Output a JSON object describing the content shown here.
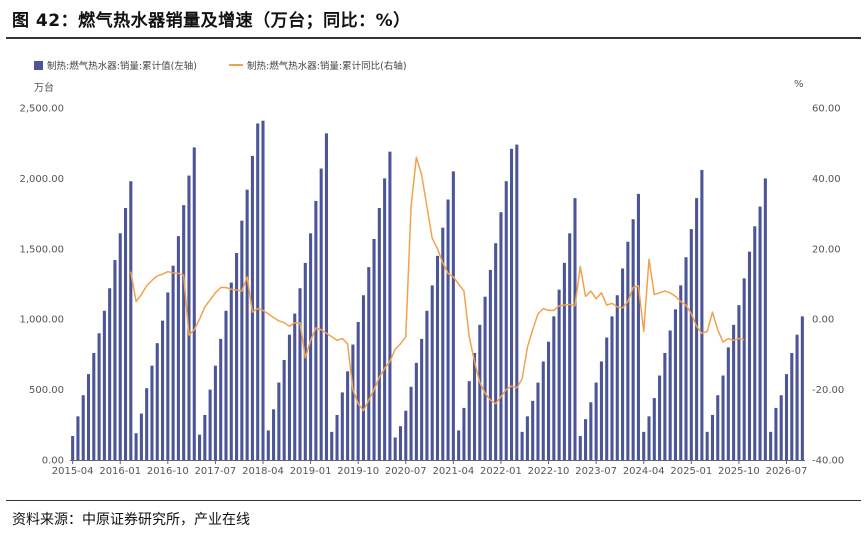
{
  "header": {
    "title": "图 42：燃气热水器销量及增速（万台；同比：%）"
  },
  "footer": {
    "source": "资料来源：中原证券研究所，产业在线"
  },
  "colors": {
    "bar": "#4c5597",
    "line": "#f2a24c",
    "axis": "#666666"
  },
  "chart_data": {
    "type": "bar+line",
    "legend": [
      "制热:燃气热水器:销量:累计值(左轴)",
      "制热:燃气热水器:销量:累计同比(右轴)"
    ],
    "legend_position": "top-left",
    "y_left": {
      "unit": "万台",
      "min": 0,
      "max": 2500,
      "ticks": [
        "0.00",
        "500.00",
        "1,000.00",
        "1,500.00",
        "2,000.00",
        "2,500.00"
      ]
    },
    "y_right": {
      "unit": "%",
      "min": -40,
      "max": 60,
      "ticks": [
        "-40.00",
        "-20.00",
        "0.00",
        "20.00",
        "40.00",
        "60.00"
      ]
    },
    "x_tick_labels": [
      "2015-04",
      "2016-01",
      "2016-10",
      "2017-07",
      "2018-04",
      "2019-01",
      "2019-10",
      "2020-07",
      "2021-04",
      "2022-01",
      "2022-10",
      "2023-07",
      "2024-04",
      "2025-01",
      "2025-10",
      "2026-07"
    ],
    "grid": false,
    "series": [
      {
        "name": "制热:燃气热水器:销量:累计值(左轴)",
        "type": "bar",
        "values": [
          [
            170,
            310,
            460,
            610,
            760,
            900,
            1060,
            1220,
            1420,
            1610,
            1790,
            1980
          ],
          [
            190,
            330,
            510,
            670,
            830,
            990,
            1190,
            1380,
            1590,
            1810,
            2020,
            2220
          ],
          [
            180,
            320,
            500,
            670,
            860,
            1060,
            1260,
            1470,
            1700,
            1920,
            2160,
            2390,
            2410
          ],
          [
            210,
            360,
            550,
            710,
            890,
            1040,
            1220,
            1400,
            1610,
            1840,
            2070,
            2320
          ],
          [
            200,
            320,
            480,
            630,
            820,
            980,
            1170,
            1370,
            1570,
            1790,
            2000,
            2190
          ],
          [
            160,
            240,
            350,
            520,
            690,
            860,
            1060,
            1240,
            1450,
            1650,
            1850,
            2050
          ],
          [
            210,
            370,
            560,
            760,
            960,
            1160,
            1350,
            1540,
            1760,
            1980,
            2210,
            2240
          ],
          [
            200,
            310,
            420,
            550,
            700,
            840,
            1020,
            1210,
            1400,
            1610,
            1860
          ],
          [
            170,
            290,
            410,
            550,
            700,
            870,
            1020,
            1170,
            1360,
            1550,
            1710,
            1890
          ],
          [
            200,
            310,
            440,
            600,
            760,
            920,
            1070,
            1240,
            1440,
            1640,
            1860,
            2060
          ],
          [
            200,
            320,
            460,
            600,
            800,
            960,
            1100,
            1290,
            1480,
            1660,
            1800,
            2000
          ],
          [
            200,
            370,
            460,
            610,
            760,
            890,
            1020
          ]
        ]
      },
      {
        "name": "制热:燃气热水器:销量:累计同比(右轴)",
        "type": "line",
        "values": [
          [
            13.5,
            5,
            7,
            9.5,
            11,
            12.3,
            12.8,
            13.5,
            13.2,
            13,
            12.5
          ],
          [
            -4.5,
            -3,
            0,
            3.5,
            5.5,
            7.5,
            9,
            9,
            8.5,
            8.3,
            8,
            12
          ],
          [
            2,
            3,
            2.5,
            1.5,
            0.5,
            -0.5,
            -1,
            -2,
            -1,
            -1
          ],
          [
            -11,
            -6,
            -2.5,
            -3,
            -4,
            -5,
            -6,
            -5.5,
            -7
          ],
          [
            -20,
            -24,
            -26,
            -23,
            -20,
            -16.5,
            -14,
            -12,
            -8.5,
            -7,
            -5
          ],
          [
            32,
            46,
            41,
            32,
            23,
            20,
            16,
            13,
            12,
            10
          ],
          [
            8,
            -5,
            -12,
            -18,
            -21,
            -23,
            -24,
            -22,
            -20,
            -19,
            -19.5,
            -17
          ],
          [
            -8,
            -3,
            1.5,
            3,
            2.5,
            2.5,
            3.8,
            4,
            4.2,
            3.8
          ],
          [
            15,
            6.5,
            8,
            5.8,
            7.5,
            4,
            4.5,
            3.5,
            3.2,
            5,
            9,
            9.5
          ],
          [
            -3.5,
            17,
            7,
            7.5,
            8,
            7.5,
            6.5,
            5,
            4,
            1.5,
            -2,
            -4,
            -3.5,
            2
          ],
          [
            -3,
            -6.5,
            -5.5,
            -6,
            -5.5,
            -5.8
          ]
        ]
      }
    ]
  }
}
